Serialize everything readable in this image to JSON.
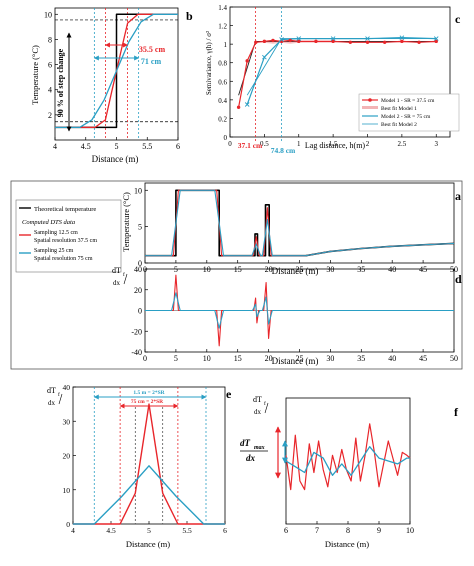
{
  "panel_letters": {
    "a": "a",
    "b": "b",
    "c": "c",
    "d": "d",
    "e": "e",
    "f": "f"
  },
  "colors": {
    "red": "#e8262b",
    "blue": "#2a9fc4",
    "black": "#000000",
    "dark": "#222222",
    "pink": "#f3b3b5"
  },
  "chart_data": [
    {
      "id": "b",
      "type": "line",
      "xlabel": "Distance (m)",
      "ylabel": "Temperature (°C)",
      "xlim": [
        4,
        6
      ],
      "ylim": [
        0,
        10.5
      ],
      "xticks": [
        4,
        4.5,
        5,
        5.5,
        6
      ],
      "yticks": [
        2,
        4,
        6,
        8,
        10
      ],
      "series": [
        {
          "color": "black",
          "x": [
            4,
            5,
            5,
            6
          ],
          "y": [
            1,
            1,
            10,
            10
          ]
        },
        {
          "color": "red",
          "x": [
            4,
            4.65,
            4.82,
            4.92,
            5,
            5.08,
            5.18,
            5.35,
            6
          ],
          "y": [
            1,
            1,
            1.6,
            3.8,
            5.5,
            7.2,
            9.3,
            10,
            10
          ]
        },
        {
          "color": "blue",
          "x": [
            4,
            4.4,
            4.6,
            4.8,
            5,
            5.2,
            5.4,
            5.6,
            6
          ],
          "y": [
            1,
            1,
            1.6,
            3.2,
            5.5,
            7.8,
            9.4,
            10,
            10
          ]
        }
      ],
      "annotations": {
        "step_text": "90 % of step change",
        "red_width": "35.5 cm",
        "blue_width": "71 cm",
        "dashed_levels": [
          9.55,
          1.45
        ],
        "red_bounds": [
          4.82,
          5.18
        ],
        "blue_bounds": [
          4.64,
          5.36
        ]
      }
    },
    {
      "id": "c",
      "type": "line",
      "xlabel": "Lag distance, h(m)",
      "ylabel": "Semivariance, γ(h) / σ²",
      "xlim": [
        0,
        3.2
      ],
      "ylim": [
        0,
        1.4
      ],
      "xticks": [
        0,
        0.5,
        1,
        1.5,
        2,
        2.5,
        3
      ],
      "yticks": [
        0,
        0.2,
        0.4,
        0.6,
        0.8,
        1,
        1.2,
        1.4
      ],
      "series": [
        {
          "name": "Model 1 - SR = 37.5 cm",
          "color": "red",
          "marker": "dot",
          "x": [
            0.125,
            0.25,
            0.375,
            0.5,
            0.625,
            0.75,
            0.875,
            1.0,
            1.25,
            1.5,
            1.75,
            2.0,
            2.25,
            2.5,
            2.75,
            3.0
          ],
          "y": [
            0.32,
            0.82,
            1.02,
            1.03,
            1.04,
            1.03,
            1.04,
            1.03,
            1.03,
            1.03,
            1.02,
            1.02,
            1.02,
            1.03,
            1.02,
            1.03
          ]
        },
        {
          "name": "Best fit Model 1",
          "color": "dark",
          "x": [
            0.125,
            0.371,
            3.0
          ],
          "y": [
            0.45,
            1.03,
            1.03
          ]
        },
        {
          "name": "Model 2 - SR = 75 cm",
          "color": "blue",
          "marker": "x",
          "x": [
            0.25,
            0.5,
            0.75,
            1.0,
            1.5,
            2.0,
            2.5,
            3.0
          ],
          "y": [
            0.35,
            0.86,
            1.05,
            1.06,
            1.06,
            1.06,
            1.07,
            1.06
          ]
        },
        {
          "name": "Best fit Model 2",
          "color": "blue",
          "x": [
            0.25,
            0.748,
            3.0
          ],
          "y": [
            0.45,
            1.06,
            1.06
          ]
        }
      ],
      "annotations": {
        "red_mark": "37.1 cm",
        "blue_mark": "74.8 cm",
        "red_x": 0.371,
        "blue_x": 0.748
      }
    },
    {
      "id": "a",
      "type": "line",
      "xlabel": "Distance (m)",
      "ylabel": "Temperature (°C)",
      "xlim": [
        0,
        50
      ],
      "ylim": [
        0,
        11
      ],
      "xticks": [
        0,
        5,
        10,
        15,
        20,
        25,
        30,
        35,
        40,
        45,
        50
      ],
      "yticks": [
        0,
        5,
        10
      ],
      "legend": {
        "placement": "left",
        "theoretical": "Theoretical temperature",
        "heading": "Computed DTS data",
        "entries": [
          {
            "line1": "Sampling 12.5 cm",
            "line2": "Spatial resolution 37.5 cm",
            "color": "red"
          },
          {
            "line1": "Sampling 25 cm",
            "line2": "Spatial resolution 75 cm",
            "color": "blue"
          }
        ]
      },
      "series": [
        {
          "color": "black",
          "x": [
            0,
            5,
            5,
            12,
            12,
            17.8,
            17.8,
            18.2,
            18.2,
            19.5,
            19.5,
            20.1,
            20.1,
            26,
            30,
            35,
            40,
            45,
            50
          ],
          "y": [
            1,
            1,
            10,
            10,
            1,
            1,
            4,
            4,
            1,
            1,
            8,
            8,
            1,
            1,
            1.6,
            2.0,
            2.3,
            2.5,
            2.7
          ]
        },
        {
          "color": "red",
          "x": [
            0,
            4.6,
            5,
            5.4,
            11.6,
            12,
            12.4,
            17.5,
            18,
            18.5,
            19.2,
            19.8,
            20.4,
            26,
            30,
            35,
            40,
            45,
            50
          ],
          "y": [
            1,
            1,
            5.5,
            10,
            10,
            5.5,
            1,
            1,
            3.6,
            1,
            1,
            7.6,
            1,
            1,
            1.6,
            2.0,
            2.3,
            2.5,
            2.7
          ]
        },
        {
          "color": "blue",
          "x": [
            0,
            4.3,
            5,
            5.7,
            11.3,
            12,
            12.7,
            17.3,
            18,
            18.7,
            19.0,
            19.8,
            20.6,
            26,
            30,
            35,
            40,
            45,
            50
          ],
          "y": [
            1,
            1,
            5.5,
            10,
            10,
            5.5,
            1,
            1,
            2.6,
            1,
            1,
            6.0,
            1,
            1,
            1.6,
            2.0,
            2.3,
            2.5,
            2.7
          ]
        }
      ]
    },
    {
      "id": "d",
      "type": "line",
      "xlabel": "Distance (m)",
      "ylabel_main": "dT",
      "ylabel_sub_f": "f",
      "ylabel_den": "dx",
      "xlim": [
        0,
        50
      ],
      "ylim": [
        -40,
        40
      ],
      "xticks": [
        0,
        5,
        10,
        15,
        20,
        25,
        30,
        35,
        40,
        45,
        50
      ],
      "yticks": [
        -40,
        -20,
        0,
        20,
        40
      ],
      "series": [
        {
          "color": "red",
          "x": [
            0,
            4.6,
            5,
            5.4,
            11.6,
            12,
            12.4,
            17.6,
            17.9,
            18.1,
            18.4,
            19.2,
            19.6,
            20.0,
            20.4,
            50
          ],
          "y": [
            0,
            0,
            34,
            0,
            0,
            -34,
            0,
            0,
            12,
            -12,
            0,
            0,
            27,
            -27,
            0,
            0
          ]
        },
        {
          "color": "blue",
          "x": [
            0,
            4.3,
            5,
            5.7,
            11.3,
            12,
            12.7,
            17.4,
            17.9,
            18.1,
            18.6,
            19.0,
            19.6,
            20.0,
            20.6,
            50
          ],
          "y": [
            0,
            0,
            17,
            0,
            0,
            -17,
            0,
            0,
            6,
            -6,
            0,
            0,
            13,
            -13,
            0,
            0
          ]
        }
      ]
    },
    {
      "id": "e",
      "type": "line",
      "xlabel": "Distance (m)",
      "ylabel_main": "dT",
      "ylabel_sub_f": "f",
      "ylabel_den": "dx",
      "xlim": [
        4,
        6
      ],
      "ylim": [
        0,
        40
      ],
      "xticks": [
        4,
        4.5,
        5,
        5.5,
        6
      ],
      "yticks": [
        0,
        10,
        20,
        30,
        40
      ],
      "series": [
        {
          "color": "red",
          "x": [
            4,
            4.62,
            4.82,
            5,
            5.18,
            5.38,
            6
          ],
          "y": [
            0,
            0,
            9,
            35,
            9,
            0,
            0
          ]
        },
        {
          "color": "blue",
          "x": [
            4,
            4.28,
            4.64,
            5,
            5.36,
            5.72,
            6
          ],
          "y": [
            0,
            0,
            8,
            17,
            8,
            0,
            0
          ]
        }
      ],
      "annotations": {
        "outer": "1.5 m = 2*SR",
        "inner": "75 cm = 2*SR",
        "outer_bounds": [
          4.28,
          5.75
        ],
        "inner_bounds": [
          4.62,
          5.38
        ],
        "sub_bounds": [
          4.82,
          5.18
        ]
      }
    },
    {
      "id": "f",
      "type": "line",
      "xlabel": "Distance (m)",
      "ylabel_main": "dT",
      "ylabel_sub_f": "f",
      "ylabel_den": "dx",
      "big_label_num": "dT",
      "big_label_sub": "max",
      "big_label_den": "dx",
      "xlim": [
        6,
        10
      ],
      "ylim": [
        -1.1,
        1.1
      ],
      "xticks": [
        6,
        7,
        8,
        9,
        10
      ],
      "yticks": [],
      "series": [
        {
          "color": "red",
          "x": [
            6,
            6.15,
            6.3,
            6.45,
            6.6,
            6.75,
            6.9,
            7.05,
            7.2,
            7.35,
            7.5,
            7.65,
            7.8,
            7.95,
            8.1,
            8.25,
            8.4,
            8.55,
            8.7,
            8.85,
            9.0,
            9.15,
            9.3,
            9.45,
            9.6,
            9.75,
            9.9,
            10
          ],
          "y": [
            0.1,
            -0.5,
            0.45,
            -0.35,
            -0.5,
            0.3,
            -0.2,
            0.35,
            -0.15,
            -0.45,
            0.1,
            -0.2,
            0.2,
            -0.15,
            -0.35,
            0.4,
            -0.35,
            0.1,
            0.65,
            0.15,
            -0.45,
            -0.05,
            0.35,
            0.05,
            -0.25,
            0.15,
            0.1,
            0.05
          ]
        },
        {
          "color": "blue",
          "x": [
            6,
            6.3,
            6.6,
            6.9,
            7.2,
            7.5,
            7.8,
            8.1,
            8.4,
            8.7,
            9.0,
            9.3,
            9.6,
            9.9,
            10
          ],
          "y": [
            0.0,
            -0.1,
            -0.2,
            0.15,
            0.05,
            -0.25,
            -0.05,
            -0.25,
            0.0,
            0.25,
            0.05,
            0.0,
            -0.05,
            0.05,
            0.05
          ]
        }
      ]
    }
  ]
}
